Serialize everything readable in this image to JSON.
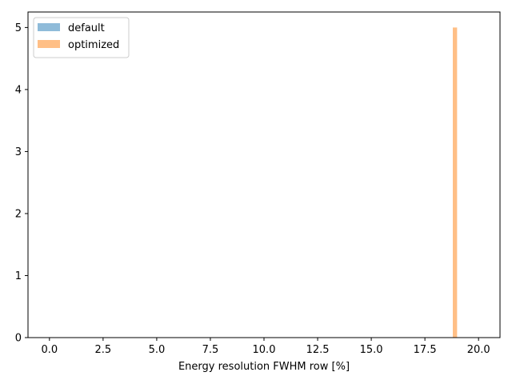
{
  "chart_data": {
    "type": "histogram",
    "title": "",
    "xlabel": "Energy resolution FWHM row [%]",
    "ylabel": "",
    "xlim": [
      -1.0,
      21.0
    ],
    "ylim": [
      0,
      5.25
    ],
    "xticks": [
      0.0,
      2.5,
      5.0,
      7.5,
      10.0,
      12.5,
      15.0,
      17.5,
      20.0
    ],
    "xtick_labels": [
      "0.0",
      "2.5",
      "5.0",
      "7.5",
      "10.0",
      "12.5",
      "15.0",
      "17.5",
      "20.0"
    ],
    "yticks": [
      0,
      1,
      2,
      3,
      4,
      5
    ],
    "ytick_labels": [
      "0",
      "1",
      "2",
      "3",
      "4",
      "5"
    ],
    "legend_position": "top-left",
    "series": [
      {
        "name": "default",
        "color": "#1f77b4",
        "alpha": 0.5,
        "bins": []
      },
      {
        "name": "optimized",
        "color": "#ff7f0e",
        "alpha": 0.5,
        "bins": [
          {
            "x0": 18.8,
            "x1": 19.0,
            "count": 5
          }
        ]
      }
    ]
  }
}
